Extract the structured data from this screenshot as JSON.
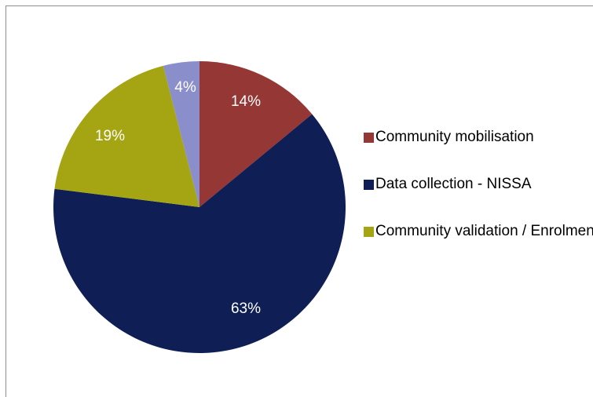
{
  "chart_data": {
    "type": "pie",
    "slices": [
      {
        "label": "Community mobilisation",
        "value": 14,
        "display": "14%",
        "color": "#953735"
      },
      {
        "label": "Data collection - NISSA",
        "value": 63,
        "display": "63%",
        "color": "#0f1f55"
      },
      {
        "label": "Community validation / Enrolment",
        "value": 19,
        "display": "19%",
        "color": "#a5a514"
      },
      {
        "label": "",
        "value": 4,
        "display": "4%",
        "color": "#8a8fcc"
      }
    ],
    "legend": {
      "position": "right",
      "entries": [
        "Community mobilisation",
        "Data collection - NISSA",
        "Community validation / Enrolment"
      ]
    },
    "start_angle": "12 o'clock",
    "direction": "clockwise"
  }
}
